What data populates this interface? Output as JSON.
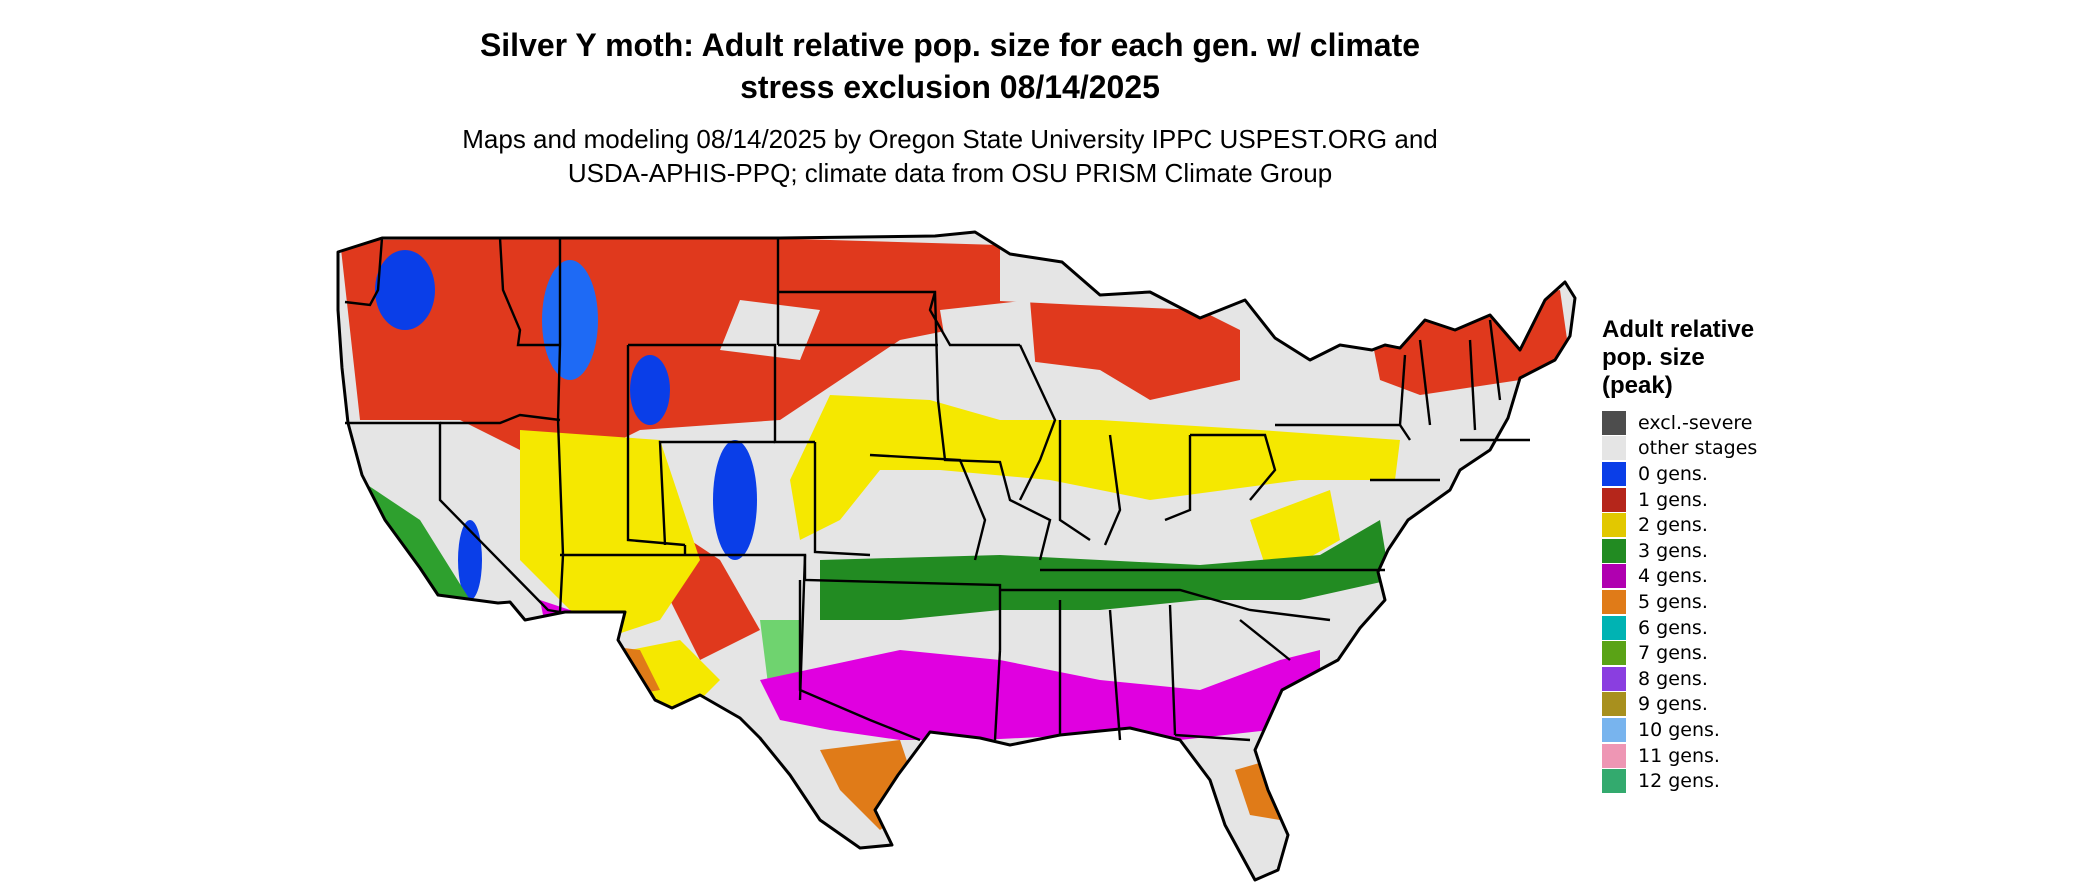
{
  "title": "Silver Y moth: Adult relative pop. size for each gen. w/ climate\nstress exclusion 08/14/2025",
  "subtitle": "Maps and modeling 08/14/2025 by Oregon State University IPPC USPEST.ORG and\nUSDA-APHIS-PPQ; climate data from OSU PRISM Climate Group",
  "legend": {
    "title": "Adult relative\npop. size\n(peak)",
    "items": [
      {
        "label": "excl.-severe",
        "color": "#4d4d4d"
      },
      {
        "label": "other stages",
        "color": "#e5e5e5"
      },
      {
        "label": "0 gens.",
        "color": "#0a3ee8"
      },
      {
        "label": "1 gens.",
        "color": "#b5261b"
      },
      {
        "label": "2 gens.",
        "color": "#e2c800"
      },
      {
        "label": "3 gens.",
        "color": "#228b22"
      },
      {
        "label": "4 gens.",
        "color": "#b000b0"
      },
      {
        "label": "5 gens.",
        "color": "#e07b18"
      },
      {
        "label": "6 gens.",
        "color": "#00b3b3"
      },
      {
        "label": "7 gens.",
        "color": "#5aa316"
      },
      {
        "label": "8 gens.",
        "color": "#8a3ee0"
      },
      {
        "label": "9 gens.",
        "color": "#a8901e"
      },
      {
        "label": "10 gens.",
        "color": "#78b4ee"
      },
      {
        "label": "11 gens.",
        "color": "#ee96b4"
      },
      {
        "label": "12 gens.",
        "color": "#33aa6e"
      }
    ]
  }
}
